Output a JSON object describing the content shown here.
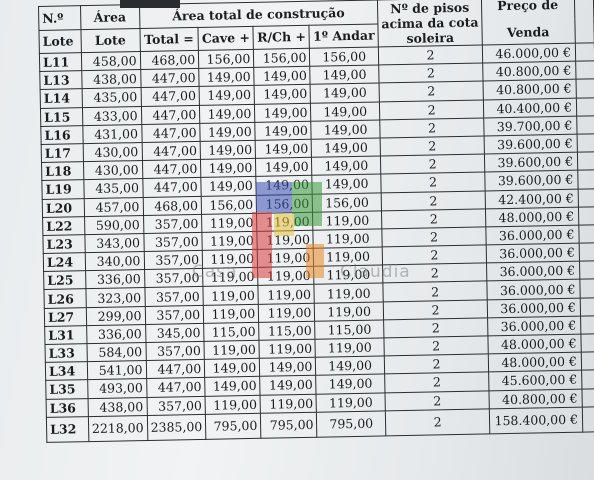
{
  "header": {
    "no": "N.º",
    "area": "Área",
    "area_total": "Área total de construção",
    "pisos_line1": "Nº de pisos",
    "pisos_line2": "acima da cota",
    "pisos_line3": "soleira",
    "preco_de": "Preço de",
    "lote": "Lote",
    "lote2": "Lote",
    "total": "Total =",
    "cave": "Cave +",
    "rch": "R/Ch +",
    "andar": "1º Andar",
    "venda": "Venda"
  },
  "rows": [
    {
      "lote": "L11",
      "area": "458,00",
      "total": "468,00",
      "cave": "156,00",
      "rch": "156,00",
      "andar": "156,00",
      "pisos": "2",
      "preco": "46.000,00 €"
    },
    {
      "lote": "L13",
      "area": "438,00",
      "total": "447,00",
      "cave": "149,00",
      "rch": "149,00",
      "andar": "149,00",
      "pisos": "2",
      "preco": "40.800,00 €"
    },
    {
      "lote": "L14",
      "area": "435,00",
      "total": "447,00",
      "cave": "149,00",
      "rch": "149,00",
      "andar": "149,00",
      "pisos": "2",
      "preco": "40.800,00 €"
    },
    {
      "lote": "L15",
      "area": "433,00",
      "total": "447,00",
      "cave": "149,00",
      "rch": "149,00",
      "andar": "149,00",
      "pisos": "2",
      "preco": "40.400,00 €"
    },
    {
      "lote": "L16",
      "area": "431,00",
      "total": "447,00",
      "cave": "149,00",
      "rch": "149,00",
      "andar": "149,00",
      "pisos": "2",
      "preco": "39.700,00 €"
    },
    {
      "lote": "L17",
      "area": "430,00",
      "total": "447,00",
      "cave": "149,00",
      "rch": "149,00",
      "andar": "149,00",
      "pisos": "2",
      "preco": "39.600,00 €"
    },
    {
      "lote": "L18",
      "area": "430,00",
      "total": "447,00",
      "cave": "149,00",
      "rch": "149,00",
      "andar": "149,00",
      "pisos": "2",
      "preco": "39.600,00 €"
    },
    {
      "lote": "L19",
      "area": "435,00",
      "total": "447,00",
      "cave": "149,00",
      "rch": "149,00",
      "andar": "149,00",
      "pisos": "2",
      "preco": "39.600,00 €"
    },
    {
      "lote": "L20",
      "area": "457,00",
      "total": "468,00",
      "cave": "156,00",
      "rch": "156,00",
      "andar": "156,00",
      "pisos": "2",
      "preco": "42.400,00 €"
    },
    {
      "lote": "L22",
      "area": "590,00",
      "total": "357,00",
      "cave": "119,00",
      "rch": "119,00",
      "andar": "119,00",
      "pisos": "2",
      "preco": "48.000,00 €"
    },
    {
      "lote": "L23",
      "area": "343,00",
      "total": "357,00",
      "cave": "119,00",
      "rch": "119,00",
      "andar": "119,00",
      "pisos": "2",
      "preco": "36.000,00 €"
    },
    {
      "lote": "L24",
      "area": "340,00",
      "total": "357,00",
      "cave": "119,00",
      "rch": "119,00",
      "andar": "119,00",
      "pisos": "2",
      "preco": "36.000,00 €"
    },
    {
      "lote": "L25",
      "area": "336,00",
      "total": "357,00",
      "cave": "119,00",
      "rch": "119,00",
      "andar": "119,00",
      "pisos": "2",
      "preco": "36.000,00 €"
    },
    {
      "lote": "L26",
      "area": "323,00",
      "total": "357,00",
      "cave": "119,00",
      "rch": "119,00",
      "andar": "119,00",
      "pisos": "2",
      "preco": "36.000,00 €"
    },
    {
      "lote": "L27",
      "area": "299,00",
      "total": "357,00",
      "cave": "119,00",
      "rch": "119,00",
      "andar": "119,00",
      "pisos": "2",
      "preco": "36.000,00 €"
    },
    {
      "lote": "L31",
      "area": "336,00",
      "total": "345,00",
      "cave": "115,00",
      "rch": "115,00",
      "andar": "115,00",
      "pisos": "2",
      "preco": "36.000,00 €"
    },
    {
      "lote": "L33",
      "area": "584,00",
      "total": "357,00",
      "cave": "119,00",
      "rch": "119,00",
      "andar": "119,00",
      "pisos": "2",
      "preco": "48.000,00 €"
    },
    {
      "lote": "L34",
      "area": "541,00",
      "total": "447,00",
      "cave": "149,00",
      "rch": "149,00",
      "andar": "149,00",
      "pisos": "2",
      "preco": "48.000,00 €"
    },
    {
      "lote": "L35",
      "area": "493,00",
      "total": "447,00",
      "cave": "149,00",
      "rch": "149,00",
      "andar": "149,00",
      "pisos": "2",
      "preco": "45.600,00 €"
    },
    {
      "lote": "L36",
      "area": "438,00",
      "total": "357,00",
      "cave": "119,00",
      "rch": "119,00",
      "andar": "119,00",
      "pisos": "2",
      "preco": "40.800,00 €"
    },
    {
      "lote": "L32",
      "area": "2218,00",
      "total": "2385,00",
      "cave": "795,00",
      "rch": "795,00",
      "andar": "795,00",
      "pisos": "2",
      "preco": "158.400,00 €"
    }
  ],
  "watermark": {
    "left": "Casa",
    "right": "Claudia"
  },
  "colors": {
    "paper": "#eceff1",
    "ink": "#1b1d20",
    "wm_blue": "#3b4fb3",
    "wm_green": "#3a9a3a",
    "wm_red": "#d83a3a",
    "wm_yellow": "#e8c23a",
    "wm_orange": "#e88a2a"
  }
}
